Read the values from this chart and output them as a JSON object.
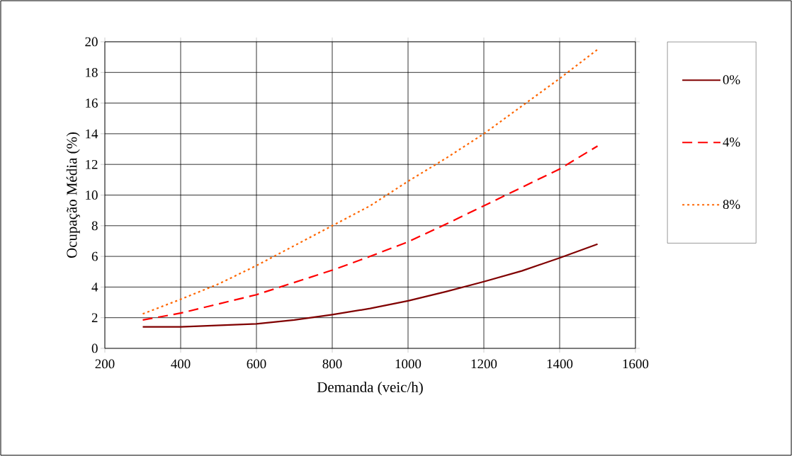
{
  "chart_data": {
    "type": "line",
    "xlabel": "Demanda (veic/h)",
    "ylabel": "Ocupação Média (%)",
    "x": [
      300,
      400,
      500,
      600,
      700,
      800,
      900,
      1000,
      1100,
      1200,
      1300,
      1400,
      1500
    ],
    "series": [
      {
        "name": "0%",
        "color": "#800000",
        "line_style": "solid",
        "values": [
          1.4,
          1.4,
          1.5,
          1.6,
          1.85,
          2.2,
          2.6,
          3.1,
          3.7,
          4.35,
          5.05,
          5.9,
          6.8
        ]
      },
      {
        "name": "4%",
        "color": "#ff0000",
        "line_style": "dashed",
        "values": [
          1.85,
          2.3,
          2.9,
          3.5,
          4.3,
          5.1,
          6.0,
          6.95,
          8.1,
          9.3,
          10.5,
          11.7,
          13.2
        ]
      },
      {
        "name": "8%",
        "color": "#ff6600",
        "line_style": "dotted",
        "values": [
          2.25,
          3.2,
          4.2,
          5.4,
          6.7,
          8.0,
          9.3,
          10.9,
          12.4,
          14.0,
          15.8,
          17.6,
          19.5
        ]
      }
    ],
    "xlim": [
      200,
      1600
    ],
    "xticks": [
      200,
      400,
      600,
      800,
      1000,
      1200,
      1400,
      1600
    ],
    "ylim": [
      0,
      20
    ],
    "yticks": [
      0,
      2,
      4,
      6,
      8,
      10,
      12,
      14,
      16,
      18,
      20
    ],
    "grid": true,
    "legend": "right",
    "marker": "none"
  }
}
